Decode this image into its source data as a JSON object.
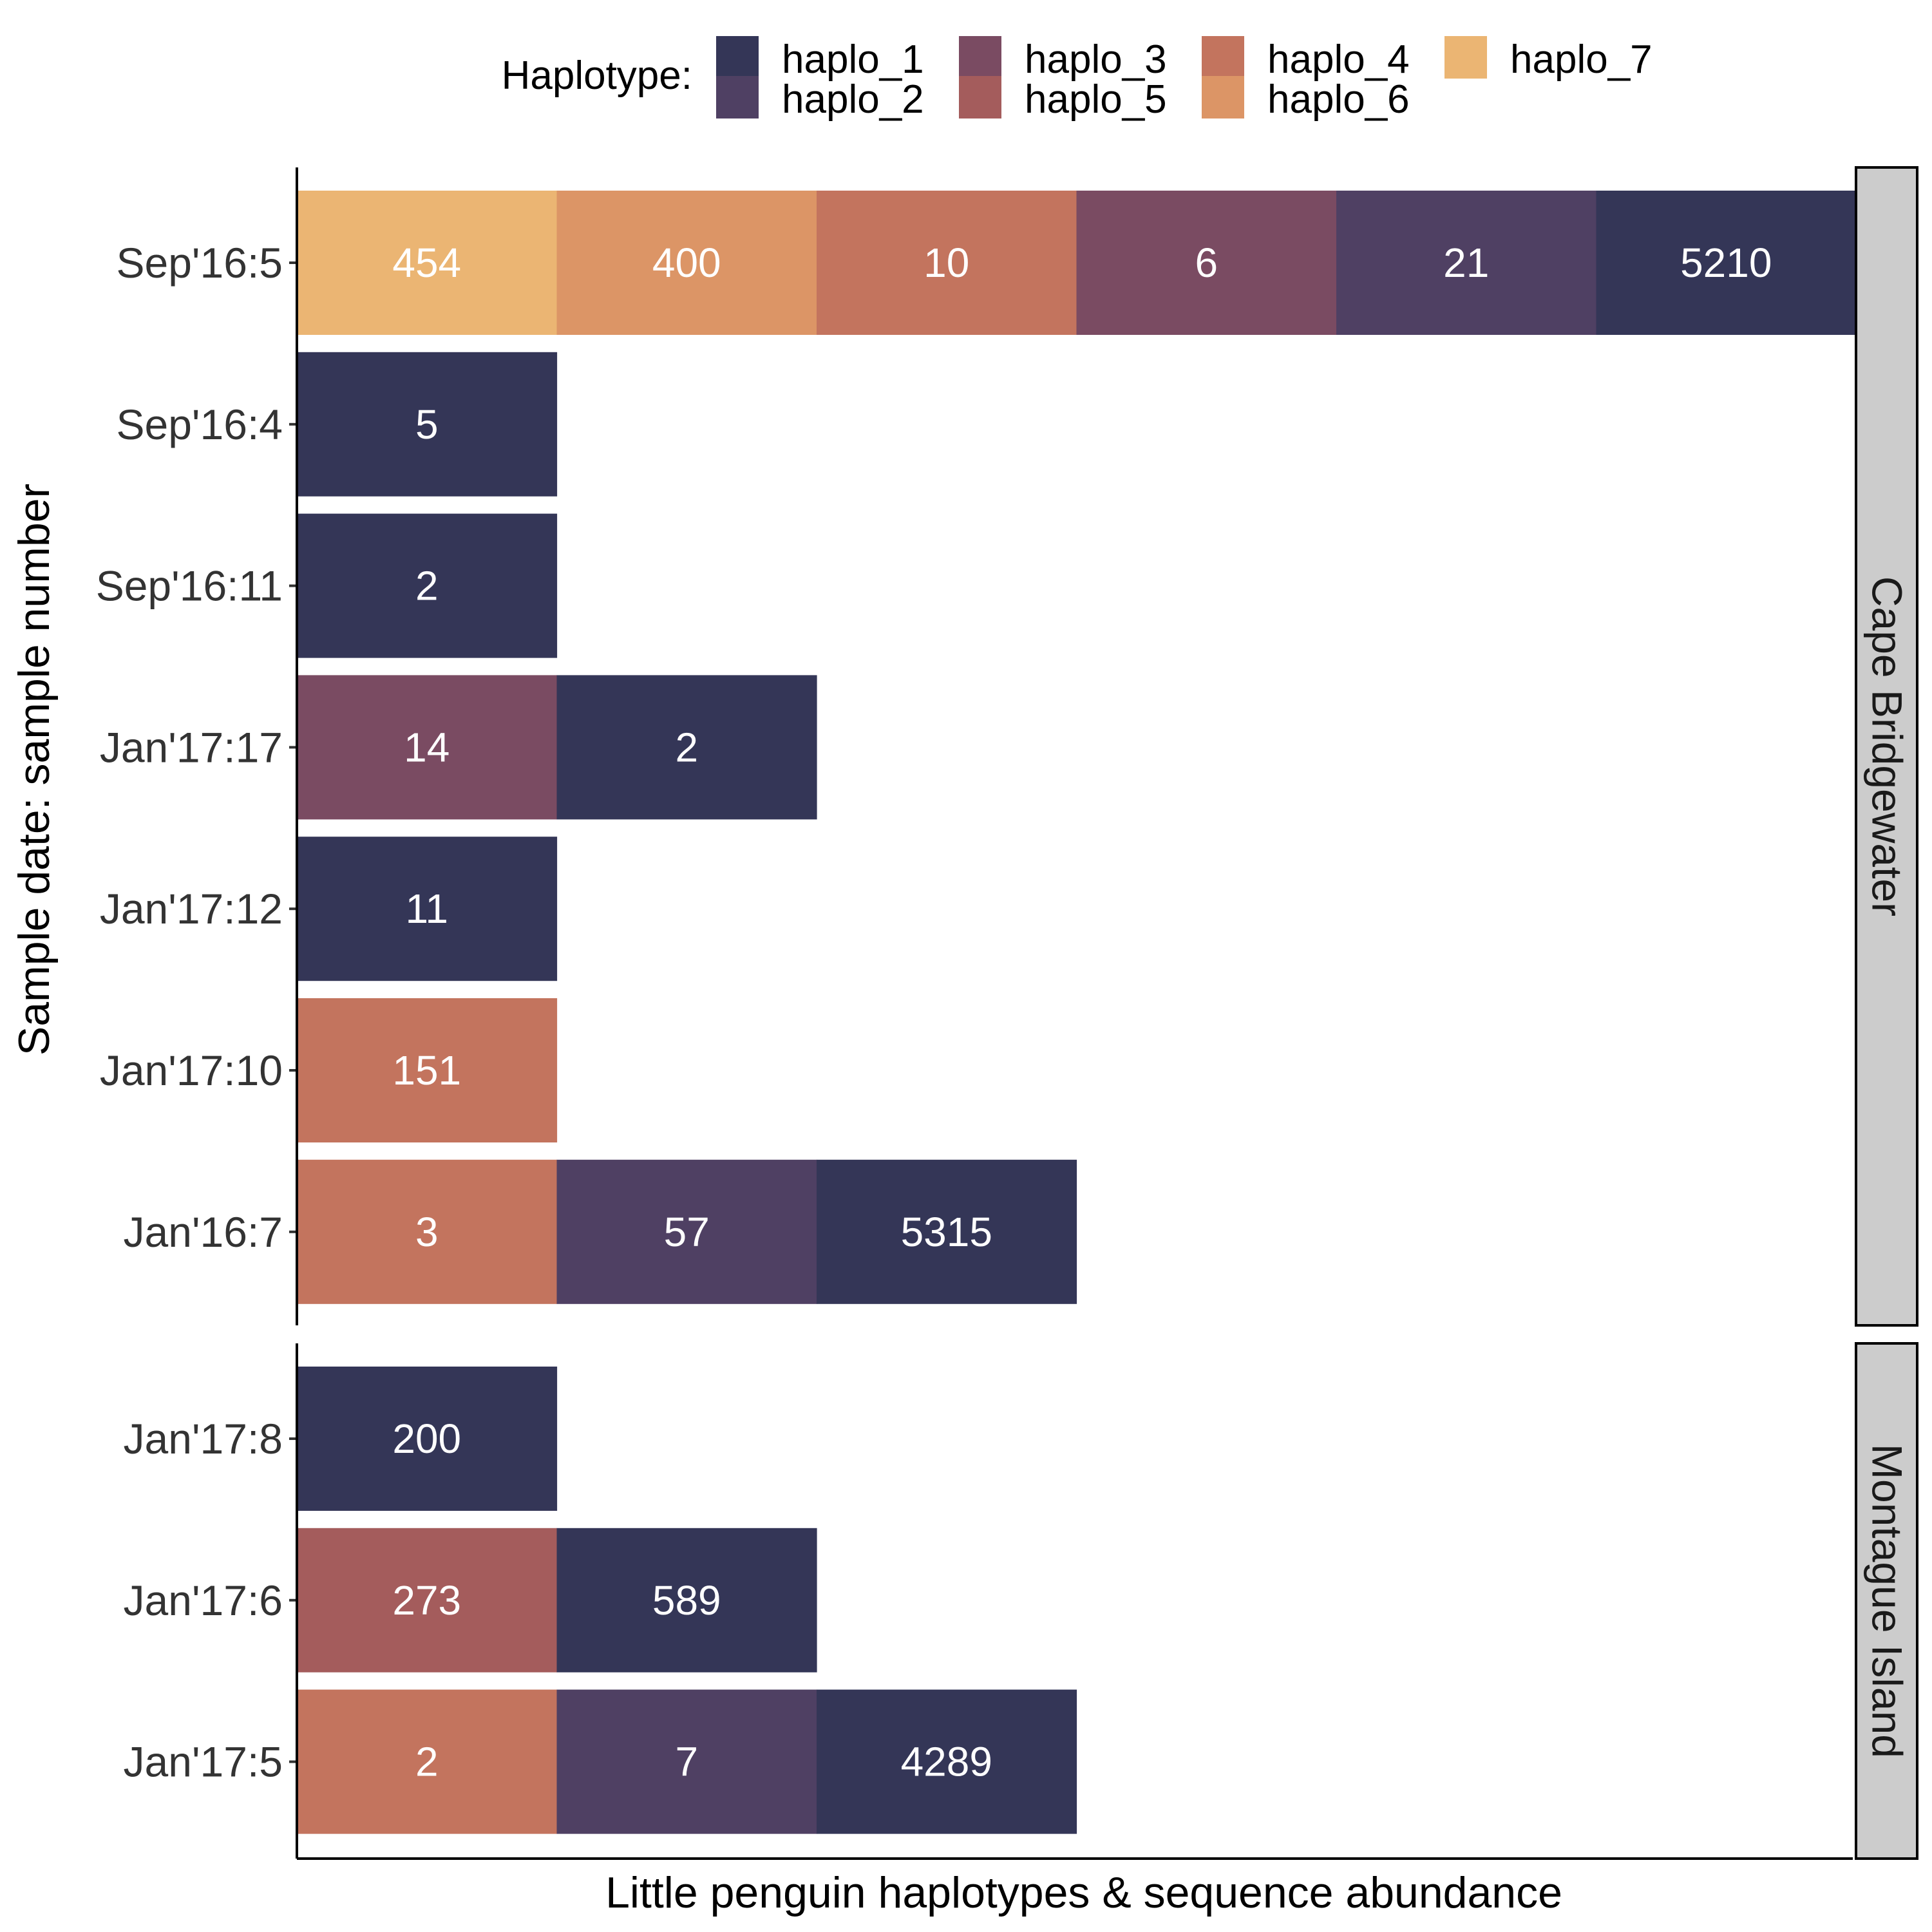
{
  "chart_data": {
    "type": "bar",
    "orientation": "horizontal-stacked-segments",
    "xlabel": "Little penguin haplotypes & sequence abundance",
    "ylabel": "Sample date: sample number",
    "legend": {
      "title": "Haplotype:",
      "position": "top",
      "entries": [
        {
          "name": "haplo_1",
          "color": "#343657"
        },
        {
          "name": "haplo_2",
          "color": "#4f4063"
        },
        {
          "name": "haplo_3",
          "color": "#7a4b62"
        },
        {
          "name": "haplo_5",
          "color": "#a45c5c"
        },
        {
          "name": "haplo_4",
          "color": "#c3745e"
        },
        {
          "name": "haplo_6",
          "color": "#dc9566"
        },
        {
          "name": "haplo_7",
          "color": "#ebb573"
        }
      ]
    },
    "panels": [
      {
        "name": "Cape Bridgewater",
        "rows": [
          {
            "label": "Sep'16:5",
            "segments": [
              {
                "haplotype": "haplo_7",
                "value": 454
              },
              {
                "haplotype": "haplo_6",
                "value": 400
              },
              {
                "haplotype": "haplo_4",
                "value": 10
              },
              {
                "haplotype": "haplo_3",
                "value": 6
              },
              {
                "haplotype": "haplo_2",
                "value": 21
              },
              {
                "haplotype": "haplo_1",
                "value": 5210
              }
            ]
          },
          {
            "label": "Sep'16:4",
            "segments": [
              {
                "haplotype": "haplo_1",
                "value": 5
              }
            ]
          },
          {
            "label": "Sep'16:11",
            "segments": [
              {
                "haplotype": "haplo_1",
                "value": 2
              }
            ]
          },
          {
            "label": "Jan'17:17",
            "segments": [
              {
                "haplotype": "haplo_3",
                "value": 14
              },
              {
                "haplotype": "haplo_1",
                "value": 2
              }
            ]
          },
          {
            "label": "Jan'17:12",
            "segments": [
              {
                "haplotype": "haplo_1",
                "value": 11
              }
            ]
          },
          {
            "label": "Jan'17:10",
            "segments": [
              {
                "haplotype": "haplo_4",
                "value": 151
              }
            ]
          },
          {
            "label": "Jan'16:7",
            "segments": [
              {
                "haplotype": "haplo_4",
                "value": 3
              },
              {
                "haplotype": "haplo_2",
                "value": 57
              },
              {
                "haplotype": "haplo_1",
                "value": 5315
              }
            ]
          }
        ]
      },
      {
        "name": "Montague Island",
        "rows": [
          {
            "label": "Jan'17:8",
            "segments": [
              {
                "haplotype": "haplo_1",
                "value": 200
              }
            ]
          },
          {
            "label": "Jan'17:6",
            "segments": [
              {
                "haplotype": "haplo_5",
                "value": 273
              },
              {
                "haplotype": "haplo_1",
                "value": 589
              }
            ]
          },
          {
            "label": "Jan'17:5",
            "segments": [
              {
                "haplotype": "haplo_4",
                "value": 2
              },
              {
                "haplotype": "haplo_2",
                "value": 7
              },
              {
                "haplotype": "haplo_1",
                "value": 4289
              }
            ]
          }
        ]
      }
    ]
  }
}
